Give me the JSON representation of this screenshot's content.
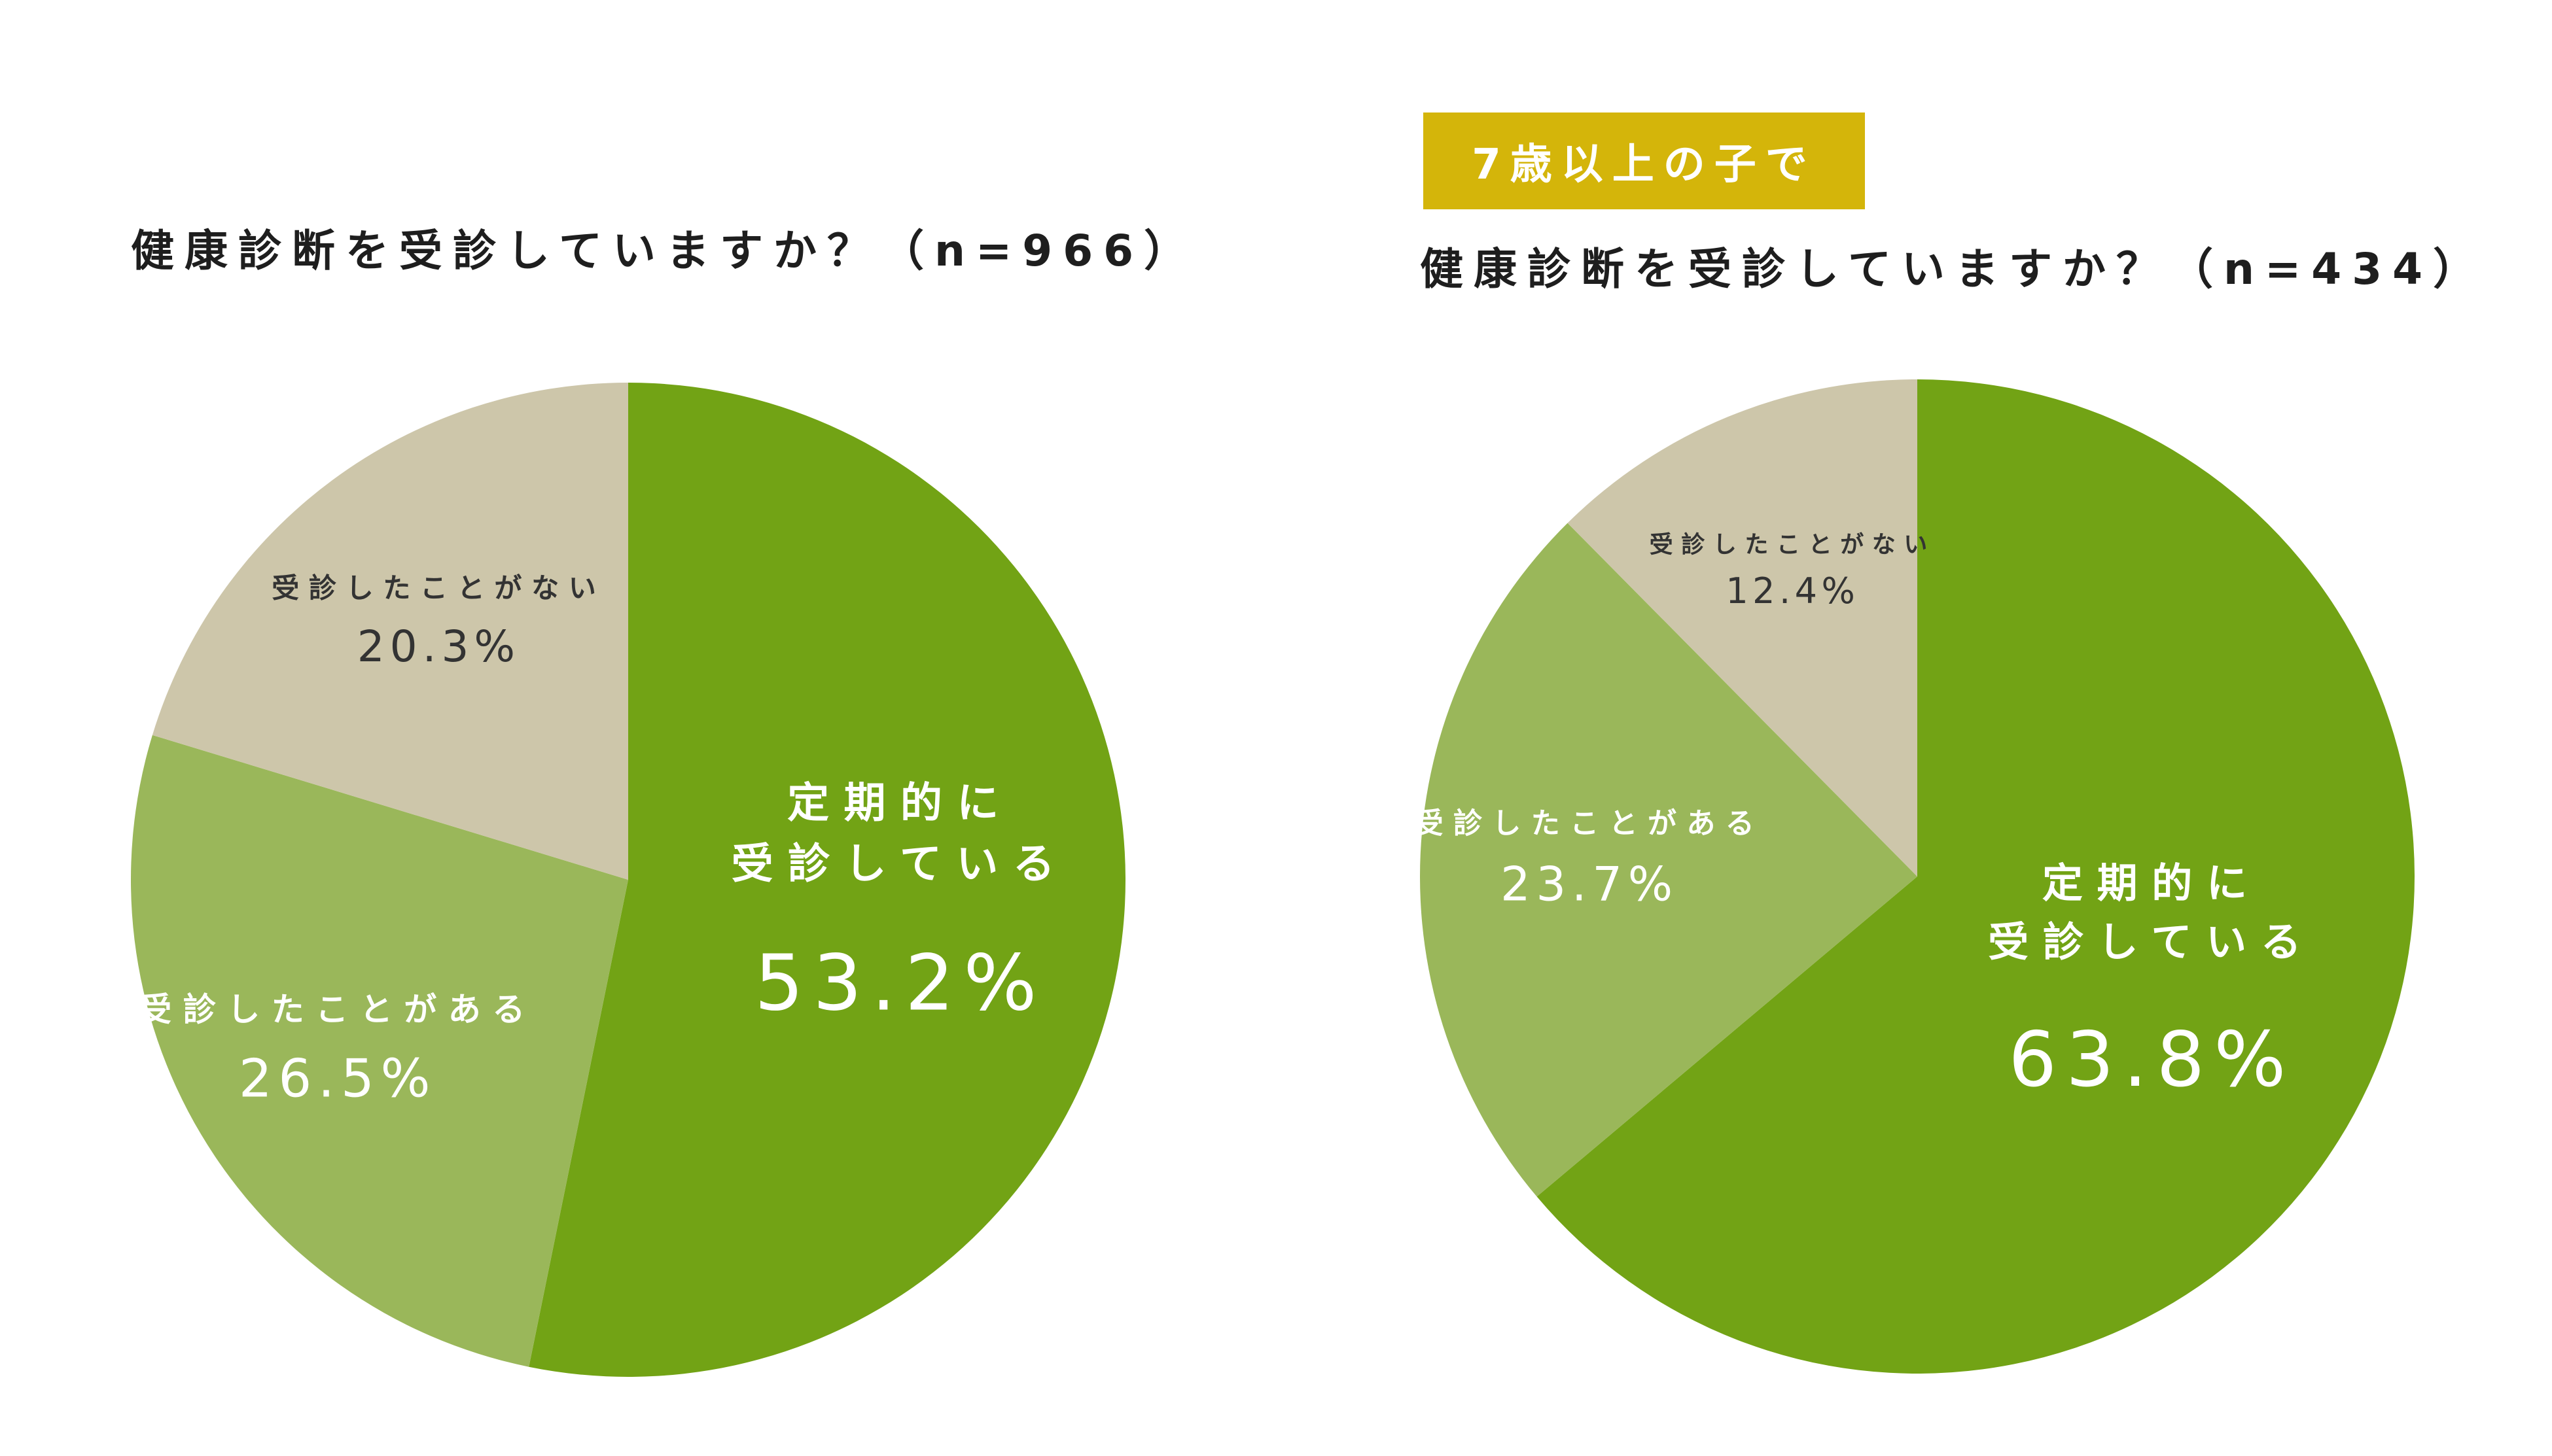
{
  "colors": {
    "dark_green": "#72a315",
    "light_green": "#9ab75a",
    "beige": "#cdc6aa",
    "badge": "#d4b50a",
    "title_text": "#1e1e1e"
  },
  "left": {
    "title": "健康診断を受診していますか？（n=966）"
  },
  "right": {
    "badge": "7歳以上の子で",
    "title": "健康診断を受診していますか？（n=434）"
  },
  "chart_data": [
    {
      "type": "pie",
      "title": "健康診断を受診していますか？（n=966）",
      "slices": [
        {
          "label": [
            "定期的に",
            "受診している"
          ],
          "value": 53.2,
          "value_label": "53.2%",
          "color": "#72a315"
        },
        {
          "label": [
            "受診したことがある"
          ],
          "value": 26.5,
          "value_label": "26.5%",
          "color": "#9ab75a"
        },
        {
          "label": [
            "受診したことがない"
          ],
          "value": 20.3,
          "value_label": "20.3%",
          "color": "#cdc6aa"
        }
      ]
    },
    {
      "type": "pie",
      "title": "健康診断を受診していますか？（n=434）",
      "subtitle": "7歳以上の子で",
      "slices": [
        {
          "label": [
            "定期的に",
            "受診している"
          ],
          "value": 63.8,
          "value_label": "63.8%",
          "color": "#72a315"
        },
        {
          "label": [
            "受診したことがある"
          ],
          "value": 23.7,
          "value_label": "23.7%",
          "color": "#9ab75a"
        },
        {
          "label": [
            "受診したことがない"
          ],
          "value": 12.4,
          "value_label": "12.4%",
          "color": "#cdc6aa"
        }
      ]
    }
  ]
}
